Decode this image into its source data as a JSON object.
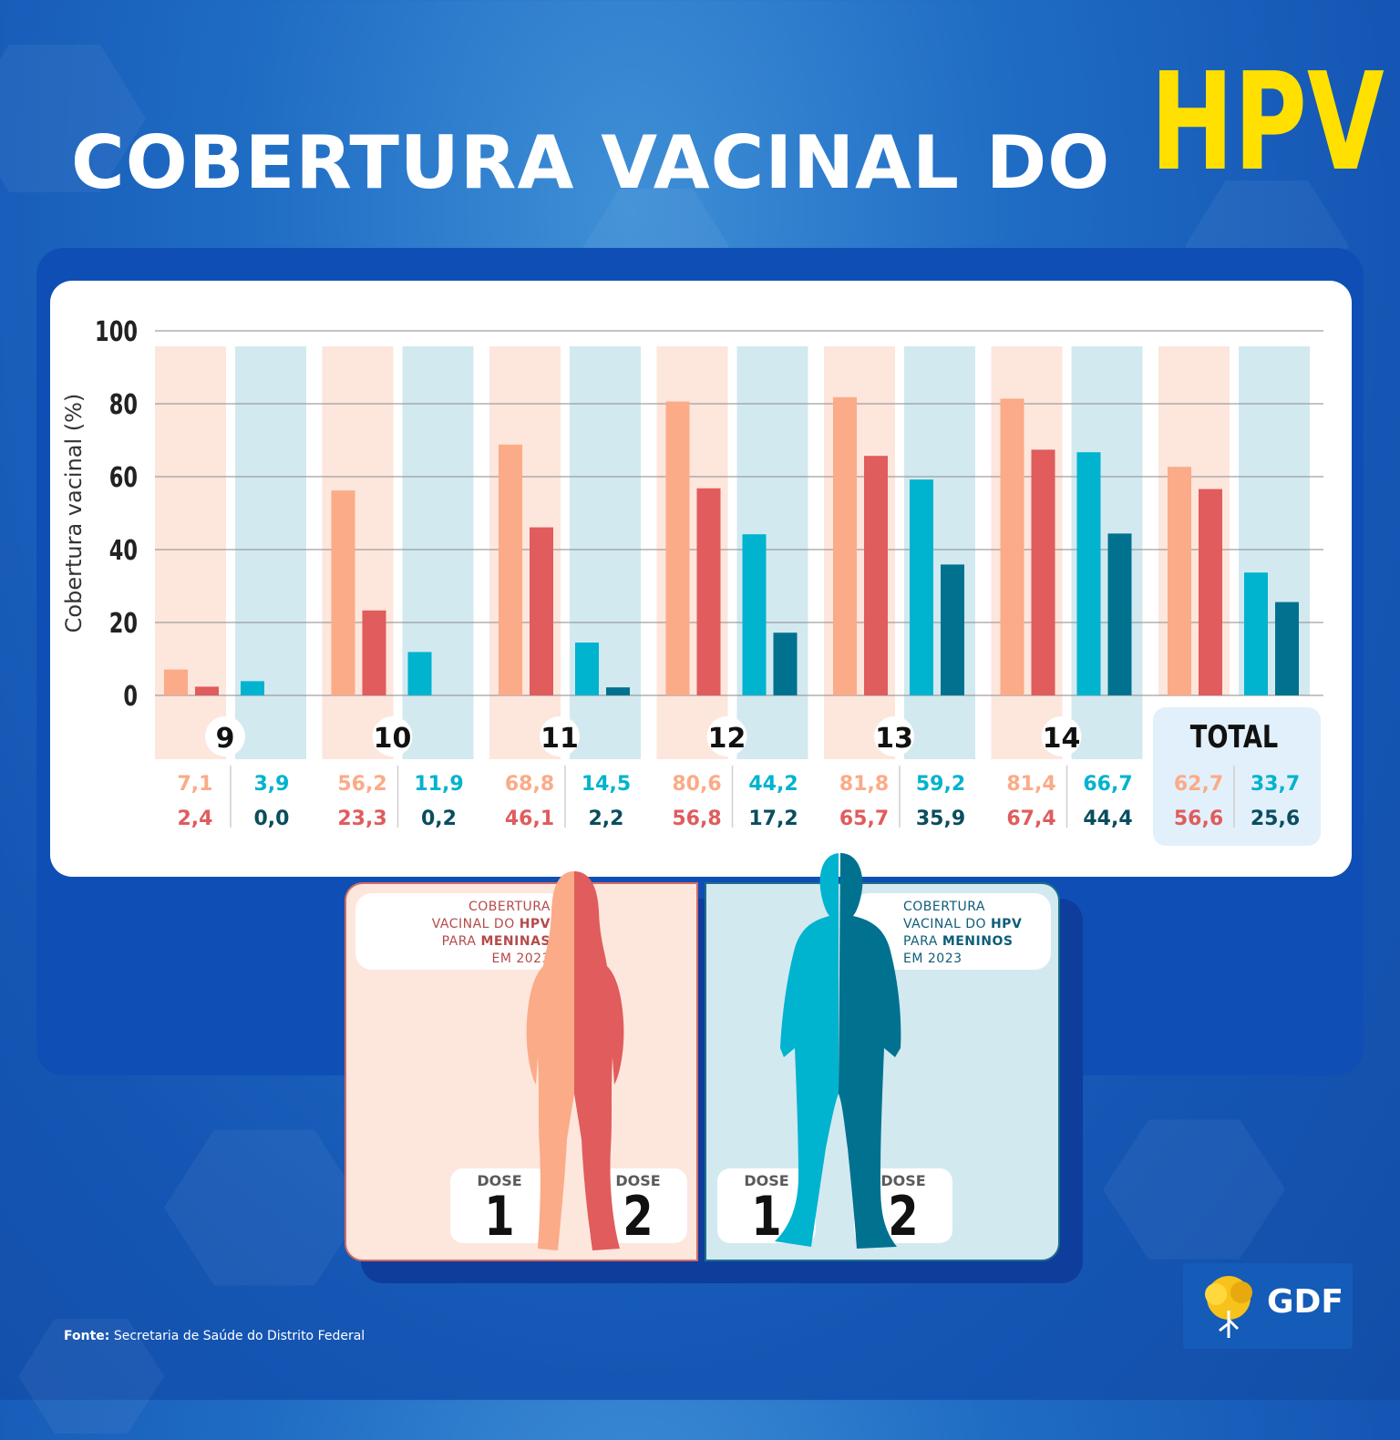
{
  "title": {
    "main": "COBERTURA VACINAL DO",
    "highlight": "HPV"
  },
  "colors": {
    "girls_dose1": "#fbab87",
    "girls_dose2": "#e05c5d",
    "boys_dose1": "#00b3cf",
    "boys_dose2": "#00728f",
    "girls_band": "#fde6dc",
    "boys_band": "#d3e9f0",
    "highlight": "#ffe000"
  },
  "chart_data": {
    "type": "bar",
    "ylabel": "Cobertura vacinal (%)",
    "ylim": [
      0,
      100
    ],
    "yticks": [
      "0",
      "20",
      "40",
      "60",
      "80",
      "100"
    ],
    "grid": true,
    "categories": [
      "9",
      "10",
      "11",
      "12",
      "13",
      "14",
      "TOTAL"
    ],
    "series": [
      {
        "group": "girls",
        "dose": 1,
        "values": [
          7.1,
          56.2,
          68.8,
          80.6,
          81.8,
          81.4,
          62.7
        ],
        "labels": [
          "7,1",
          "56,2",
          "68,8",
          "80,6",
          "81,8",
          "81,4",
          "62,7"
        ]
      },
      {
        "group": "girls",
        "dose": 2,
        "values": [
          2.4,
          23.3,
          46.1,
          56.8,
          65.7,
          67.4,
          56.6
        ],
        "labels": [
          "2,4",
          "23,3",
          "46,1",
          "56,8",
          "65,7",
          "67,4",
          "56,6"
        ]
      },
      {
        "group": "boys",
        "dose": 1,
        "values": [
          3.9,
          11.9,
          14.5,
          44.2,
          59.2,
          66.7,
          33.7
        ],
        "labels": [
          "3,9",
          "11,9",
          "14,5",
          "44,2",
          "59,2",
          "66,7",
          "33,7"
        ]
      },
      {
        "group": "boys",
        "dose": 2,
        "values": [
          0.0,
          0.2,
          2.2,
          17.2,
          35.9,
          44.4,
          25.6
        ],
        "labels": [
          "0,0",
          "0,2",
          "2,2",
          "17,2",
          "35,9",
          "44,4",
          "25,6"
        ]
      }
    ]
  },
  "girls_panel": {
    "line1": "COBERTURA",
    "line2_pre": "VACINAL DO ",
    "line2_bold": "HPV",
    "line3_pre": "PARA ",
    "line3_bold": "MENINAS",
    "line4": "EM 2023"
  },
  "boys_panel": {
    "line1": "COBERTURA",
    "line2_pre": "VACINAL DO ",
    "line2_bold": "HPV",
    "line3_pre": "PARA ",
    "line3_bold": "MENINOS",
    "line4": "EM 2023"
  },
  "dose_labels": {
    "word": "DOSE",
    "one": "1",
    "two": "2"
  },
  "source": {
    "label": "Fonte:",
    "text": " Secretaria de Saúde do Distrito Federal"
  },
  "logo": {
    "text": "GDF",
    "icon": "tree-icon"
  }
}
